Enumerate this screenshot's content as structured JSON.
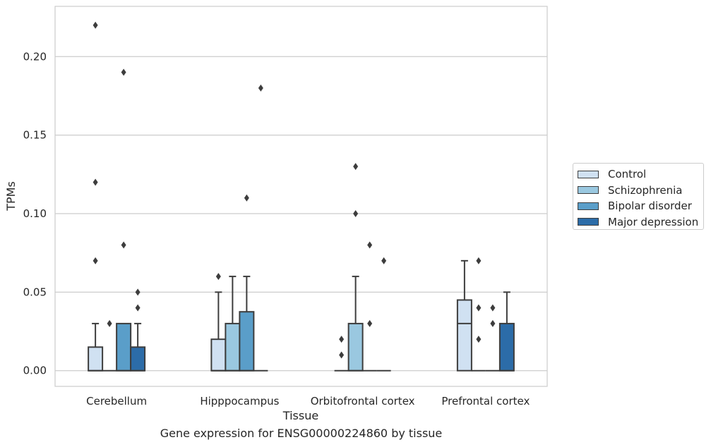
{
  "caption": "Gene expression for ENSG00000224860 by tissue",
  "chart_data": {
    "type": "box",
    "title": "",
    "xlabel": "Tissue",
    "ylabel": "TPMs",
    "ylim": [
      -0.01,
      0.232
    ],
    "yticks": [
      0.0,
      0.05,
      0.1,
      0.15,
      0.2
    ],
    "ytick_labels": [
      "0.00",
      "0.05",
      "0.10",
      "0.15",
      "0.20"
    ],
    "grid": true,
    "legend_placement": "right",
    "categories": [
      "Cerebellum",
      "Hipppocampus",
      "Orbitofrontal cortex",
      "Prefrontal cortex"
    ],
    "series": [
      {
        "name": "Control",
        "color": "#d0e1f2",
        "boxes": [
          {
            "q1": 0.0,
            "median": 0.0,
            "q3": 0.015,
            "whisker_low": 0.0,
            "whisker_high": 0.03,
            "outliers": [
              0.07,
              0.12,
              0.22
            ]
          },
          {
            "q1": 0.0,
            "median": 0.0,
            "q3": 0.02,
            "whisker_low": 0.0,
            "whisker_high": 0.05,
            "outliers": [
              0.06
            ]
          },
          {
            "q1": 0.0,
            "median": 0.0,
            "q3": 0.0,
            "whisker_low": 0.0,
            "whisker_high": 0.0,
            "outliers": [
              0.01,
              0.02
            ]
          },
          {
            "q1": 0.0,
            "median": 0.03,
            "q3": 0.045,
            "whisker_low": 0.0,
            "whisker_high": 0.07,
            "outliers": []
          }
        ]
      },
      {
        "name": "Schizophrenia",
        "color": "#9ac8e0",
        "boxes": [
          {
            "q1": 0.0,
            "median": 0.0,
            "q3": 0.0,
            "whisker_low": 0.0,
            "whisker_high": 0.0,
            "outliers": [
              0.03
            ]
          },
          {
            "q1": 0.0,
            "median": 0.0,
            "q3": 0.03,
            "whisker_low": 0.0,
            "whisker_high": 0.06,
            "outliers": []
          },
          {
            "q1": 0.0,
            "median": 0.0,
            "q3": 0.03,
            "whisker_low": 0.0,
            "whisker_high": 0.06,
            "outliers": [
              0.1,
              0.13
            ]
          },
          {
            "q1": 0.0,
            "median": 0.0,
            "q3": 0.0,
            "whisker_low": 0.0,
            "whisker_high": 0.0,
            "outliers": [
              0.02,
              0.04,
              0.07
            ]
          }
        ]
      },
      {
        "name": "Bipolar disorder",
        "color": "#5a9ec9",
        "boxes": [
          {
            "q1": 0.0,
            "median": 0.0,
            "q3": 0.03,
            "whisker_low": 0.0,
            "whisker_high": 0.03,
            "outliers": [
              0.08,
              0.19
            ]
          },
          {
            "q1": 0.0,
            "median": 0.0,
            "q3": 0.0375,
            "whisker_low": 0.0,
            "whisker_high": 0.06,
            "outliers": [
              0.11
            ]
          },
          {
            "q1": 0.0,
            "median": 0.0,
            "q3": 0.0,
            "whisker_low": 0.0,
            "whisker_high": 0.0,
            "outliers": [
              0.03,
              0.08
            ]
          },
          {
            "q1": 0.0,
            "median": 0.0,
            "q3": 0.0,
            "whisker_low": 0.0,
            "whisker_high": 0.0,
            "outliers": [
              0.03,
              0.04
            ]
          }
        ]
      },
      {
        "name": "Major depression",
        "color": "#2c6ca8",
        "boxes": [
          {
            "q1": 0.0,
            "median": 0.0,
            "q3": 0.015,
            "whisker_low": 0.0,
            "whisker_high": 0.03,
            "outliers": [
              0.04,
              0.05
            ]
          },
          {
            "q1": 0.0,
            "median": 0.0,
            "q3": 0.0,
            "whisker_low": 0.0,
            "whisker_high": 0.0,
            "outliers": [
              0.18
            ]
          },
          {
            "q1": 0.0,
            "median": 0.0,
            "q3": 0.0,
            "whisker_low": 0.0,
            "whisker_high": 0.0,
            "outliers": [
              0.07
            ]
          },
          {
            "q1": 0.0,
            "median": 0.0,
            "q3": 0.03,
            "whisker_low": 0.0,
            "whisker_high": 0.05,
            "outliers": []
          }
        ]
      }
    ]
  }
}
